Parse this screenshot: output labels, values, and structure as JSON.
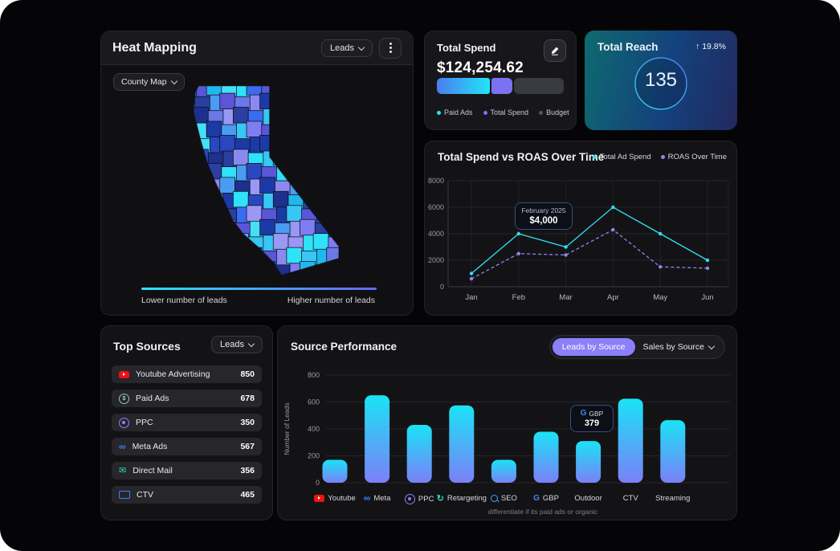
{
  "heat_mapping": {
    "title": "Heat Mapping",
    "metric_dropdown": "Leads",
    "map_type_dropdown": "County Map",
    "legend_low": "Lower number of leads",
    "legend_high": "Higher number of leads",
    "legend_gradient": {
      "from": "#2be3f6",
      "to": "#6468f0"
    },
    "map_palette": [
      "#2fe2f8",
      "#38c6f4",
      "#4a9cf2",
      "#3a6cf0",
      "#2948c0",
      "#1e2f8e",
      "#5b55d8",
      "#7f7df2",
      "#9a97f5",
      "#20b7ef",
      "#6a78e8",
      "#1b3aa5",
      "#45e0f5",
      "#2a3f9f",
      "#8b88ef"
    ]
  },
  "total_spend": {
    "title": "Total Spend",
    "value": "$124,254.62",
    "segments": [
      {
        "label": "Paid Ads",
        "pct": 43,
        "dot": "#2ee0f4",
        "fill_from": "#4a7df0",
        "fill_to": "#23e5f8"
      },
      {
        "label": "Total Spend",
        "pct": 17,
        "dot": "#7b72f3",
        "fill": "#7b72f3"
      },
      {
        "label": "Budget",
        "pct": 40,
        "dot": "#55555c",
        "fill": "#3a3a41"
      }
    ]
  },
  "total_reach": {
    "title": "Total Reach",
    "delta": "↑ 19.8%",
    "value": "135"
  },
  "spend_roas": {
    "title": "Total Spend vs ROAS Over Time",
    "chart_data": {
      "type": "line",
      "x": [
        "Jan",
        "Feb",
        "Mar",
        "Apr",
        "May",
        "Jun"
      ],
      "series": [
        {
          "name": "Total Ad Spend",
          "color": "#2ee0f4",
          "style": "solid",
          "values": [
            1000,
            4000,
            3000,
            6000,
            4000,
            2000
          ]
        },
        {
          "name": "ROAS Over Time",
          "color": "#8b87f0",
          "style": "dashed",
          "values": [
            600,
            2500,
            2400,
            4300,
            1500,
            1400
          ]
        }
      ],
      "ylim": [
        0,
        8000
      ],
      "yticks": [
        0,
        2000,
        4000,
        6000,
        8000
      ],
      "grid": true,
      "legend_position": "top-right"
    },
    "tooltip": {
      "title": "February 2025",
      "value": "$4,000",
      "anchor": "Feb"
    }
  },
  "top_sources": {
    "title": "Top Sources",
    "metric_dropdown": "Leads",
    "items": [
      {
        "icon": "youtube-icon",
        "label": "Youtube Advertising",
        "value": "850"
      },
      {
        "icon": "dollar-icon",
        "label": "Paid Ads",
        "value": "678"
      },
      {
        "icon": "ppc-icon",
        "label": "PPC",
        "value": "350"
      },
      {
        "icon": "meta-icon",
        "label": "Meta Ads",
        "value": "567"
      },
      {
        "icon": "mail-icon",
        "label": "Direct Mail",
        "value": "356"
      },
      {
        "icon": "tv-icon",
        "label": "CTV",
        "value": "465"
      }
    ]
  },
  "source_performance": {
    "title": "Source Performance",
    "tabs": [
      {
        "label": "Leads by Source",
        "active": true
      },
      {
        "label": "Sales by Source",
        "active": false
      }
    ],
    "chart_data": {
      "type": "bar",
      "categories": [
        "Youtube",
        "Meta",
        "PPC",
        "Retargeting",
        "SEO",
        "GBP",
        "Outdoor",
        "CTV",
        "Streaming"
      ],
      "values": [
        170,
        650,
        430,
        575,
        170,
        379,
        310,
        625,
        465
      ],
      "icons": [
        "youtube-icon",
        "meta-icon",
        "ppc-icon",
        "retargeting-icon",
        "seo-icon",
        "google-icon",
        null,
        null,
        null
      ],
      "bar_gradient": {
        "top": "#1ae3f6",
        "bottom": "#7b80f7"
      },
      "ylabel": "Number of Leads",
      "ylim": [
        0,
        800
      ],
      "yticks": [
        0,
        200,
        400,
        600,
        800
      ],
      "grid": true
    },
    "tooltip": {
      "icon": "google-icon",
      "label": "GBP",
      "value": "379"
    },
    "footnote": "differentiate if its paid ads or organic"
  }
}
